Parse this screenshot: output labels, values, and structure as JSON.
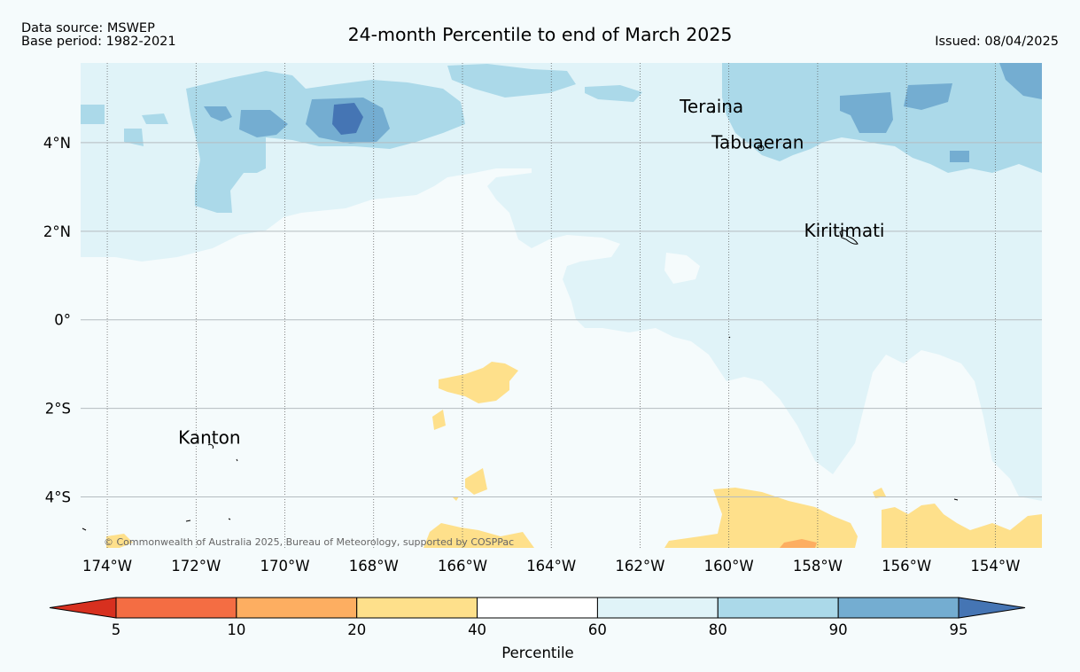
{
  "header": {
    "data_source": "Data source: MSWEP",
    "base_period": "Base period: 1982-2021",
    "title": "24-month Percentile to end of March 2025",
    "issued": "Issued: 08/04/2025"
  },
  "map": {
    "lon_range": [
      -174.6,
      -152.95
    ],
    "lat_range": [
      -5.15,
      5.8
    ],
    "lon_ticks": [
      {
        "value": -174,
        "label": "174°W"
      },
      {
        "value": -172,
        "label": "172°W"
      },
      {
        "value": -170,
        "label": "170°W"
      },
      {
        "value": -168,
        "label": "168°W"
      },
      {
        "value": -166,
        "label": "166°W"
      },
      {
        "value": -164,
        "label": "164°W"
      },
      {
        "value": -162,
        "label": "162°W"
      },
      {
        "value": -160,
        "label": "160°W"
      },
      {
        "value": -158,
        "label": "158°W"
      },
      {
        "value": -156,
        "label": "156°W"
      },
      {
        "value": -154,
        "label": "154°W"
      }
    ],
    "lat_ticks": [
      {
        "value": 4,
        "label": "4°N"
      },
      {
        "value": 2,
        "label": "2°N"
      },
      {
        "value": 0,
        "label": "0°"
      },
      {
        "value": -2,
        "label": "2°S"
      },
      {
        "value": -4,
        "label": "4°S"
      }
    ],
    "places": [
      {
        "name": "Teraina",
        "lon": -160.39,
        "lat": 4.68
      },
      {
        "name": "Tabuaeran",
        "lon": -159.35,
        "lat": 3.87
      },
      {
        "name": "Kiritimati",
        "lon": -157.4,
        "lat": 1.88
      },
      {
        "name": "Kanton",
        "lon": -171.7,
        "lat": -2.8
      }
    ],
    "copyright": "© Commonwealth of Australia 2025, Bureau of Meteorology, supported by COSPPac"
  },
  "colorbar": {
    "label": "Percentile",
    "ticks": [
      "5",
      "10",
      "20",
      "40",
      "60",
      "80",
      "90",
      "95"
    ],
    "colors": {
      "below_5": "#d7301f",
      "p5_10": "#f46d43",
      "p10_20": "#fdae61",
      "p20_40": "#fee08b",
      "p40_60": "#ffffff",
      "p60_80": "#e0f3f8",
      "p80_90": "#abd9e9",
      "p90_95": "#74add1",
      "above_95": "#4575b4"
    }
  }
}
